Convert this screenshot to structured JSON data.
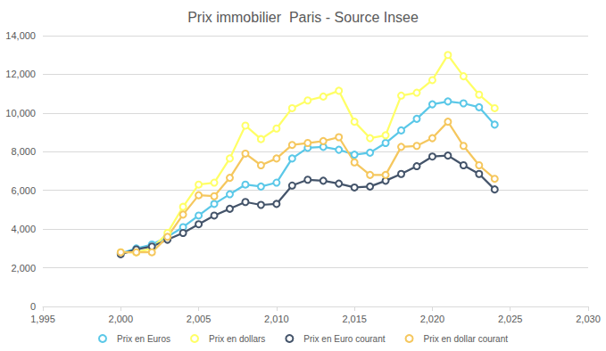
{
  "chart_data": {
    "type": "line",
    "title": "Prix immobilier  Paris - Source Insee",
    "x": [
      2000,
      2001,
      2002,
      2003,
      2004,
      2005,
      2006,
      2007,
      2008,
      2009,
      2010,
      2011,
      2012,
      2013,
      2014,
      2015,
      2016,
      2017,
      2018,
      2019,
      2020,
      2021,
      2022,
      2023,
      2024
    ],
    "xlim": [
      1995,
      2030
    ],
    "xticks": [
      1995,
      2000,
      2005,
      2010,
      2015,
      2020,
      2025,
      2030
    ],
    "ylim": [
      0,
      14000
    ],
    "yticks": [
      0,
      2000,
      4000,
      6000,
      8000,
      10000,
      12000,
      14000
    ],
    "grid": true,
    "legend": "bottom",
    "marker": "circle",
    "series": [
      {
        "name": "Prix en Euros",
        "color": "#5bc8e8",
        "values": [
          2750,
          3000,
          3200,
          3600,
          4100,
          4700,
          5300,
          5800,
          6300,
          6200,
          6400,
          7650,
          8200,
          8250,
          8100,
          7850,
          7950,
          8450,
          9100,
          9700,
          10450,
          10600,
          10500,
          10300,
          9400
        ]
      },
      {
        "name": "Prix en dollars",
        "color": "#ffff66",
        "values": [
          2800,
          2800,
          3000,
          3800,
          5150,
          6300,
          6400,
          7650,
          9350,
          8650,
          9200,
          10250,
          10650,
          10850,
          11150,
          9550,
          8700,
          8850,
          10900,
          11050,
          11700,
          13000,
          11900,
          10950,
          10250
        ]
      },
      {
        "name": "Prix en Euro courant",
        "color": "#44546a",
        "values": [
          2700,
          2950,
          3100,
          3450,
          3800,
          4250,
          4700,
          5050,
          5400,
          5250,
          5300,
          6250,
          6550,
          6500,
          6350,
          6150,
          6200,
          6500,
          6850,
          7250,
          7750,
          7800,
          7300,
          6850,
          6050
        ]
      },
      {
        "name": "Prix en dollar courant",
        "color": "#f5c75e",
        "values": [
          2800,
          2800,
          2800,
          3600,
          4750,
          5750,
          5700,
          6650,
          7900,
          7300,
          7650,
          8350,
          8450,
          8550,
          8750,
          7450,
          6800,
          6800,
          8250,
          8300,
          8700,
          9550,
          8300,
          7300,
          6600
        ]
      }
    ]
  }
}
